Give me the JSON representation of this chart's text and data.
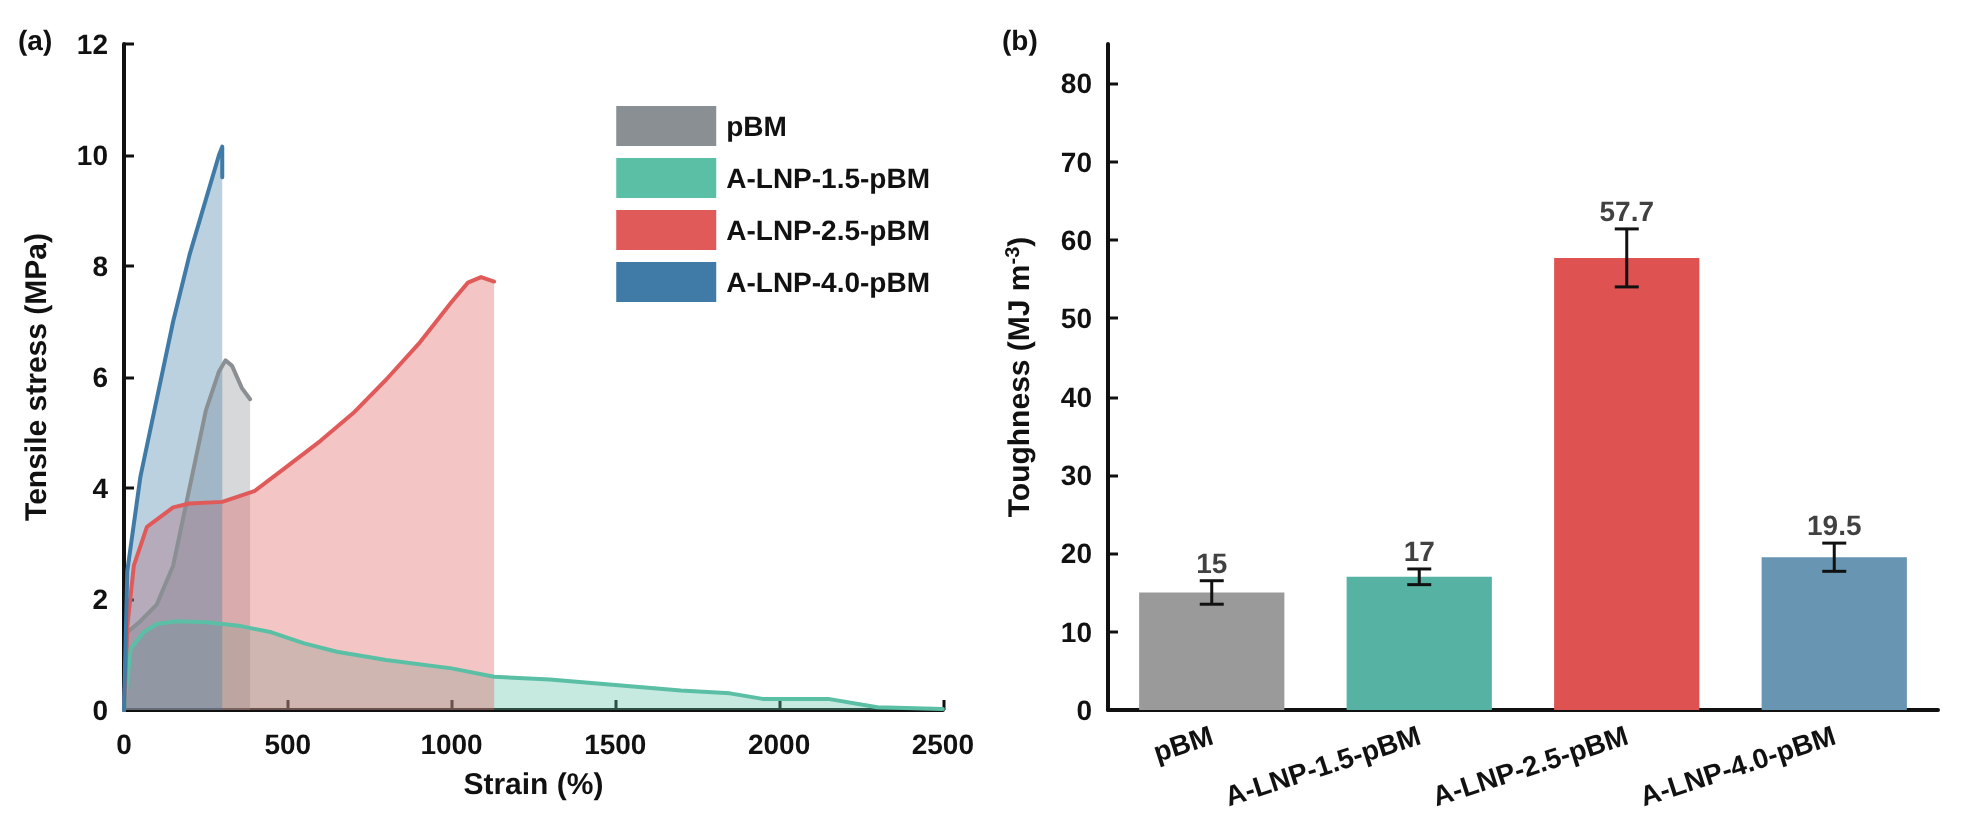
{
  "chart_data": [
    {
      "type": "area",
      "title": "(a)",
      "xlabel": "Strain (%)",
      "ylabel": "Tensile stress (MPa)",
      "xlim": [
        0,
        2500
      ],
      "xticks": [
        0,
        500,
        1000,
        1500,
        2000,
        2500
      ],
      "ylim": [
        0,
        12
      ],
      "yticks": [
        0,
        2,
        4,
        6,
        8,
        10,
        12
      ],
      "legend": "top right",
      "grid": false,
      "series": [
        {
          "name": "pBM",
          "color": "#8a8f94",
          "x": [
            0,
            10,
            50,
            100,
            150,
            200,
            250,
            290,
            310,
            330,
            360,
            385
          ],
          "values": [
            0,
            1.4,
            1.6,
            1.9,
            2.6,
            4.0,
            5.4,
            6.1,
            6.3,
            6.2,
            5.8,
            5.6
          ]
        },
        {
          "name": "A-LNP-1.5-pBM",
          "color": "#5bbfa6",
          "x": [
            0,
            20,
            60,
            100,
            160,
            250,
            350,
            450,
            550,
            650,
            800,
            1000,
            1130,
            1300,
            1500,
            1700,
            1850,
            1950,
            2150,
            2300,
            2500
          ],
          "values": [
            0,
            1.1,
            1.4,
            1.55,
            1.6,
            1.58,
            1.52,
            1.4,
            1.2,
            1.05,
            0.9,
            0.75,
            0.6,
            0.55,
            0.45,
            0.35,
            0.3,
            0.2,
            0.2,
            0.05,
            0.02
          ]
        },
        {
          "name": "A-LNP-2.5-pBM",
          "color": "#e05a5a",
          "x": [
            0,
            10,
            30,
            70,
            150,
            200,
            300,
            400,
            500,
            600,
            700,
            800,
            900,
            1000,
            1050,
            1090,
            1130
          ],
          "values": [
            0,
            1.5,
            2.6,
            3.3,
            3.65,
            3.72,
            3.75,
            3.95,
            4.4,
            4.85,
            5.35,
            5.95,
            6.6,
            7.35,
            7.7,
            7.8,
            7.72
          ]
        },
        {
          "name": "A-LNP-4.0-pBM",
          "color": "#3f7ba6",
          "x": [
            0,
            10,
            50,
            100,
            150,
            200,
            250,
            290,
            300,
            300
          ],
          "values": [
            0,
            2.5,
            4.2,
            5.6,
            7.0,
            8.2,
            9.2,
            10.0,
            10.15,
            9.6
          ]
        }
      ]
    },
    {
      "type": "bar",
      "title": "(b)",
      "ylabel": "Toughness (MJ m$^{-3}$)",
      "categories": [
        "pBM",
        "A-LNP-1.5-pBM",
        "A-LNP-2.5-pBM",
        "A-LNP-4.0-pBM"
      ],
      "values": [
        15,
        17,
        57.7,
        19.5
      ],
      "colors": [
        "#9a9a9a",
        "#56b3a3",
        "#de5252",
        "#6795b2"
      ],
      "errors": [
        1.5,
        1,
        3.7,
        1.8
      ],
      "data_labels": true,
      "ylim": [
        0,
        85
      ],
      "yticks": [
        0,
        10,
        20,
        30,
        40,
        50,
        60,
        70,
        80
      ],
      "grid": false
    }
  ]
}
